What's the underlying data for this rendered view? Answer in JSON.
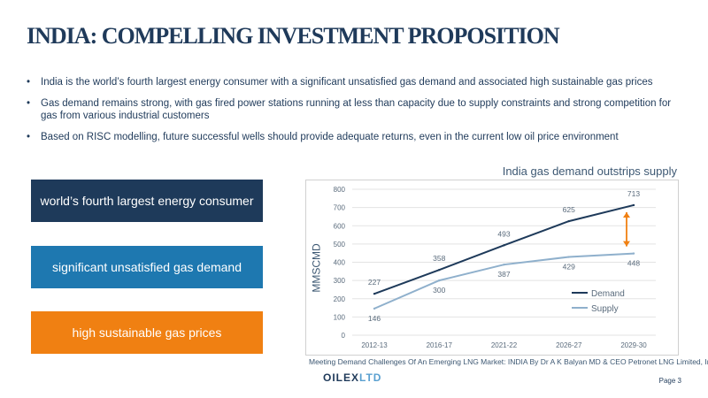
{
  "title": "INDIA:   COMPELLING INVESTMENT PROPOSITION",
  "bullets": [
    "India is the world’s fourth largest energy consumer with a significant unsatisfied gas demand and associated high sustainable gas prices",
    "Gas demand remains strong, with gas fired power stations running at less than capacity due to supply constraints and strong competition for gas from various industrial customers",
    "Based on RISC modelling, future successful wells should provide adequate returns, even in the current low oil price environment"
  ],
  "boxes": [
    {
      "label": "world’s fourth largest energy consumer",
      "color": "#1e3a5a"
    },
    {
      "label": "significant unsatisfied gas demand",
      "color": "#1e78b0"
    },
    {
      "label": "high sustainable gas prices",
      "color": "#f08012"
    }
  ],
  "chart_title": "India gas demand outstrips supply",
  "source": "Meeting Demand Challenges Of An Emerging LNG Market: INDIA By Dr A K Balyan MD & CEO Petronet LNG Limited, India",
  "logo": {
    "main": "OILEX",
    "accent": "LTD"
  },
  "page": "Page 3",
  "chart_data": {
    "type": "line",
    "title": "India gas demand outstrips supply",
    "ylabel": "MMSCMD",
    "xlabel": "",
    "categories": [
      "2012-13",
      "2016-17",
      "2021-22",
      "2026-27",
      "2029-30"
    ],
    "ylim": [
      0,
      800
    ],
    "yticks": [
      0,
      100,
      200,
      300,
      400,
      500,
      600,
      700,
      800
    ],
    "grid": true,
    "legend": "bottom-right",
    "series": [
      {
        "name": "Demand",
        "values": [
          227,
          358,
          493,
          625,
          713
        ],
        "color": "#1e3a5a"
      },
      {
        "name": "Supply",
        "values": [
          146,
          300,
          387,
          429,
          448
        ],
        "color": "#8fb0cc"
      }
    ],
    "gap_arrow_color": "#f08012"
  }
}
